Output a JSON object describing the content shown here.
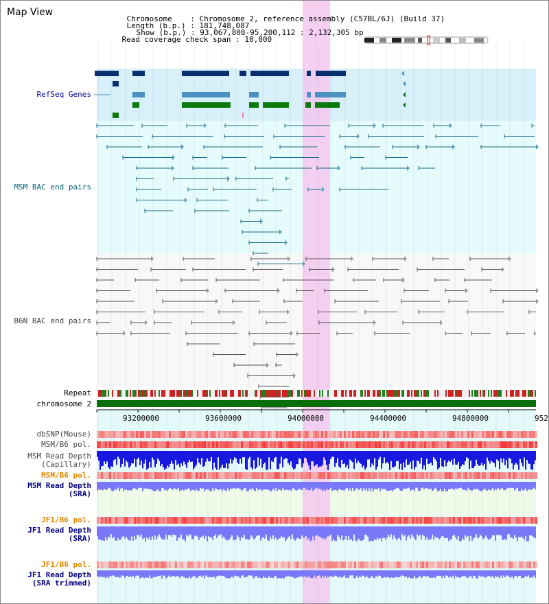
{
  "title": "Map View",
  "header": {
    "chromosome_label": "Chromosome",
    "chromosome_value": "Chromosome 2, reference assembly (C57BL/6J) (Build 37)",
    "length_label": "Length (b.p.)",
    "length_value": "181,748,087",
    "show_label": "Show (b.p.)",
    "show_value": "93,067,808-95,200,112 : 2,132,305 bp",
    "coverage_label": "Read coverage check span",
    "coverage_value": "10,000"
  },
  "tracks": {
    "refseq": "RefSeq Genes",
    "msm_bac": "MSM BAC end pairs",
    "b6n_bac": "B6N BAC end pairs",
    "repeat": "Repeat",
    "chromosome": "chromosome 2",
    "dbsnp": "dbSNP(Mouse)",
    "msm_b6_pol_1": "MSM/B6 pol.",
    "msm_depth_cap_1": "MSM Read Depth",
    "msm_depth_cap_2": "(Capillary)",
    "msm_b6_pol_2": "MSM/B6 pol.",
    "msm_depth_sra_1": "MSM Read Depth",
    "msm_depth_sra_2": "(SRA)",
    "jf1_b6_pol_1": "JF1/B6 pol.",
    "jf1_depth_sra_1": "JF1 Read Depth",
    "jf1_depth_sra_2": "(SRA)",
    "jf1_b6_pol_2": "JF1/B6 pol.",
    "jf1_depth_trim_1": "JF1 Read Depth",
    "jf1_depth_trim_2": "(SRA trimmed)"
  },
  "axis": {
    "ticks": [
      "93200000",
      "93600000",
      "94000000",
      "94400000",
      "94800000",
      "952"
    ]
  },
  "colors": {
    "refseq_bg": "#d8f0fa",
    "msm_bg": "#e6fbfb",
    "b6n_bg": "#f8f8f8",
    "highlight": "#f5c8ee",
    "chromosome": "#0b6e0b",
    "msm_bac_line": "#1a6a8a",
    "gene_navy": "#0a2f6e",
    "gene_blue": "#4a90c0",
    "gene_green": "#0a7a0a",
    "depth_dark": "#1818e0",
    "depth_light": "#7878f8",
    "pol_red": "#f05050"
  }
}
